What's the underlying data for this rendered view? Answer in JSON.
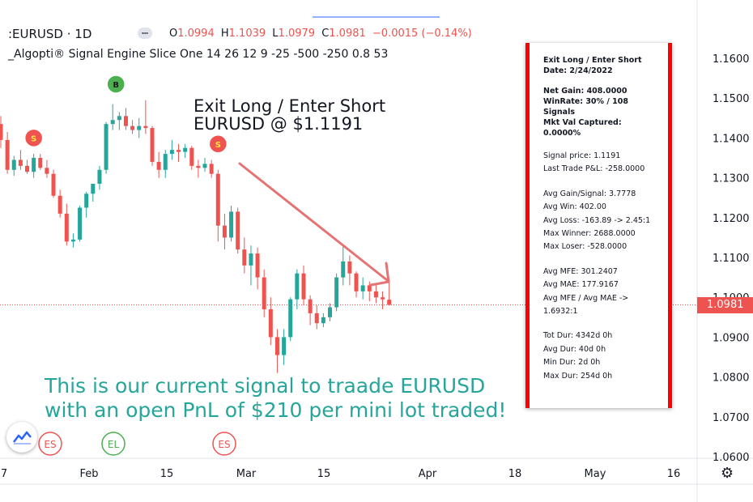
{
  "header": {
    "symbol": ":EURUSD · 1D",
    "ohlc": {
      "o_label": "O",
      "o": "1.0994",
      "h_label": "H",
      "h": "1.1039",
      "l_label": "L",
      "l": "1.0979",
      "c_label": "C",
      "c": "1.0981",
      "change": "−0.0015 (−0.14%)"
    },
    "indicator": "_Algopti® Signal Engine Slice One 14 26 12 9 -25 -500 -250 0.8 53"
  },
  "annotations": {
    "exit_line1": "Exit Long / Enter Short",
    "exit_line2": "EURUSD @ $1.1191",
    "green_line1": "This is our current signal to traade EURUSD",
    "green_line2": "with an open PnL of $210 per mini lot traded!"
  },
  "panel": {
    "title1": "Exit Long / Enter Short",
    "title2": "Date: 2/24/2022",
    "net_gain": "Net Gain: 408.0000",
    "winrate1": "WinRate: 30% / 108",
    "winrate2": "Signals",
    "mkt1": "Mkt Val Captured:",
    "mkt2": "0.0000%",
    "signal_price": "Signal price: 1.1191",
    "last_pl": "Last Trade P&L: -258.0000",
    "avg_gain": "Avg Gain/Signal: 3.7778",
    "avg_win": "Avg Win: 402.00",
    "avg_loss": "Avg Loss: -163.89 -> 2.45:1",
    "max_winner": "Max Winner: 2688.0000",
    "max_loser": "Max Loser: -528.0000",
    "avg_mfe": "Avg MFE: 301.2407",
    "avg_mae": "Avg MAE: 177.9167",
    "mfe_mae1": "Avg MFE / Avg MAE ->",
    "mfe_mae2": "1.6932:1",
    "tot_dur": "Tot Dur: 4342d 0h",
    "avg_dur": "Avg Dur: 40d 0h",
    "min_dur": "Min Dur: 2d 0h",
    "max_dur": "Max Dur: 254d 0h"
  },
  "price_label": "1.0981",
  "colors": {
    "up": "#26a69a",
    "down": "#ef5350",
    "accent_red": "#ff0000",
    "grid": "#f0f3fa"
  },
  "chart_data": {
    "type": "candlestick",
    "ylim": [
      1.058,
      1.169
    ],
    "y_ticks": [
      "1.1600",
      "1.1500",
      "1.1400",
      "1.1300",
      "1.1200",
      "1.1100",
      "1.1000",
      "1.0900",
      "1.0800",
      "1.0700",
      "1.0600"
    ],
    "x_ticks": [
      "7",
      "Feb",
      "15",
      "Mar",
      "15",
      "Apr",
      "18",
      "May",
      "16"
    ],
    "candles": [
      {
        "o": 1.1435,
        "h": 1.1455,
        "l": 1.1375,
        "c": 1.1395
      },
      {
        "o": 1.1395,
        "h": 1.1415,
        "l": 1.131,
        "c": 1.132
      },
      {
        "o": 1.132,
        "h": 1.1355,
        "l": 1.1305,
        "c": 1.1345
      },
      {
        "o": 1.1345,
        "h": 1.137,
        "l": 1.132,
        "c": 1.133
      },
      {
        "o": 1.133,
        "h": 1.1345,
        "l": 1.131,
        "c": 1.1315
      },
      {
        "o": 1.1315,
        "h": 1.136,
        "l": 1.13,
        "c": 1.135
      },
      {
        "o": 1.135,
        "h": 1.136,
        "l": 1.132,
        "c": 1.1325
      },
      {
        "o": 1.1325,
        "h": 1.1345,
        "l": 1.13,
        "c": 1.131
      },
      {
        "o": 1.131,
        "h": 1.132,
        "l": 1.125,
        "c": 1.1255
      },
      {
        "o": 1.1255,
        "h": 1.127,
        "l": 1.12,
        "c": 1.121
      },
      {
        "o": 1.121,
        "h": 1.1235,
        "l": 1.113,
        "c": 1.114
      },
      {
        "o": 1.114,
        "h": 1.116,
        "l": 1.1125,
        "c": 1.1145
      },
      {
        "o": 1.1145,
        "h": 1.123,
        "l": 1.114,
        "c": 1.1225
      },
      {
        "o": 1.1225,
        "h": 1.1265,
        "l": 1.12,
        "c": 1.126
      },
      {
        "o": 1.126,
        "h": 1.1285,
        "l": 1.124,
        "c": 1.1285
      },
      {
        "o": 1.1285,
        "h": 1.133,
        "l": 1.127,
        "c": 1.132
      },
      {
        "o": 1.132,
        "h": 1.144,
        "l": 1.131,
        "c": 1.1435
      },
      {
        "o": 1.1435,
        "h": 1.1485,
        "l": 1.142,
        "c": 1.1445
      },
      {
        "o": 1.1445,
        "h": 1.1465,
        "l": 1.142,
        "c": 1.1455
      },
      {
        "o": 1.1455,
        "h": 1.1475,
        "l": 1.142,
        "c": 1.143
      },
      {
        "o": 1.143,
        "h": 1.1445,
        "l": 1.141,
        "c": 1.142
      },
      {
        "o": 1.142,
        "h": 1.145,
        "l": 1.14,
        "c": 1.143
      },
      {
        "o": 1.143,
        "h": 1.1495,
        "l": 1.141,
        "c": 1.1425
      },
      {
        "o": 1.1425,
        "h": 1.143,
        "l": 1.133,
        "c": 1.134
      },
      {
        "o": 1.134,
        "h": 1.1365,
        "l": 1.13,
        "c": 1.132
      },
      {
        "o": 1.132,
        "h": 1.137,
        "l": 1.13,
        "c": 1.136
      },
      {
        "o": 1.136,
        "h": 1.1395,
        "l": 1.1345,
        "c": 1.137
      },
      {
        "o": 1.137,
        "h": 1.1385,
        "l": 1.134,
        "c": 1.1365
      },
      {
        "o": 1.1365,
        "h": 1.1385,
        "l": 1.135,
        "c": 1.1375
      },
      {
        "o": 1.1375,
        "h": 1.138,
        "l": 1.132,
        "c": 1.133
      },
      {
        "o": 1.133,
        "h": 1.1345,
        "l": 1.13,
        "c": 1.1325
      },
      {
        "o": 1.1325,
        "h": 1.135,
        "l": 1.1315,
        "c": 1.1335
      },
      {
        "o": 1.1335,
        "h": 1.1345,
        "l": 1.13,
        "c": 1.131
      },
      {
        "o": 1.131,
        "h": 1.132,
        "l": 1.114,
        "c": 1.118
      },
      {
        "o": 1.118,
        "h": 1.121,
        "l": 1.112,
        "c": 1.115
      },
      {
        "o": 1.115,
        "h": 1.123,
        "l": 1.114,
        "c": 1.1215
      },
      {
        "o": 1.1215,
        "h": 1.1225,
        "l": 1.111,
        "c": 1.112
      },
      {
        "o": 1.112,
        "h": 1.115,
        "l": 1.106,
        "c": 1.108
      },
      {
        "o": 1.108,
        "h": 1.113,
        "l": 1.103,
        "c": 1.111
      },
      {
        "o": 1.111,
        "h": 1.1125,
        "l": 1.102,
        "c": 1.105
      },
      {
        "o": 1.105,
        "h": 1.107,
        "l": 1.095,
        "c": 1.097
      },
      {
        "o": 1.097,
        "h": 1.1,
        "l": 1.088,
        "c": 1.09
      },
      {
        "o": 1.09,
        "h": 1.092,
        "l": 1.081,
        "c": 1.0855
      },
      {
        "o": 1.0855,
        "h": 1.092,
        "l": 1.083,
        "c": 1.09
      },
      {
        "o": 1.09,
        "h": 1.1,
        "l": 1.089,
        "c": 1.0995
      },
      {
        "o": 1.0995,
        "h": 1.107,
        "l": 1.097,
        "c": 1.106
      },
      {
        "o": 1.106,
        "h": 1.108,
        "l": 1.098,
        "c": 1.0995
      },
      {
        "o": 1.0995,
        "h": 1.1005,
        "l": 1.093,
        "c": 1.096
      },
      {
        "o": 1.096,
        "h": 1.098,
        "l": 1.092,
        "c": 1.0935
      },
      {
        "o": 1.0935,
        "h": 1.096,
        "l": 1.0925,
        "c": 1.095
      },
      {
        "o": 1.095,
        "h": 1.0985,
        "l": 1.094,
        "c": 1.0975
      },
      {
        "o": 1.0975,
        "h": 1.106,
        "l": 1.0965,
        "c": 1.105
      },
      {
        "o": 1.105,
        "h": 1.113,
        "l": 1.103,
        "c": 1.109
      },
      {
        "o": 1.109,
        "h": 1.1105,
        "l": 1.103,
        "c": 1.106
      },
      {
        "o": 1.106,
        "h": 1.1065,
        "l": 1.1,
        "c": 1.1015
      },
      {
        "o": 1.1015,
        "h": 1.105,
        "l": 1.0995,
        "c": 1.103
      },
      {
        "o": 1.103,
        "h": 1.104,
        "l": 1.099,
        "c": 1.1015
      },
      {
        "o": 1.1015,
        "h": 1.1035,
        "l": 1.0985,
        "c": 1.1
      },
      {
        "o": 1.1,
        "h": 1.1015,
        "l": 1.097,
        "c": 1.0995
      },
      {
        "o": 1.0994,
        "h": 1.1039,
        "l": 1.0979,
        "c": 1.0981
      }
    ],
    "signals": [
      {
        "type": "S",
        "candle": 5,
        "price": 1.14
      },
      {
        "type": "B",
        "candle": 17,
        "price": 1.1535
      },
      {
        "type": "S",
        "candle": 33,
        "price": 1.1385
      }
    ],
    "bottom_markers": [
      "ES",
      "EL",
      "ES"
    ]
  }
}
